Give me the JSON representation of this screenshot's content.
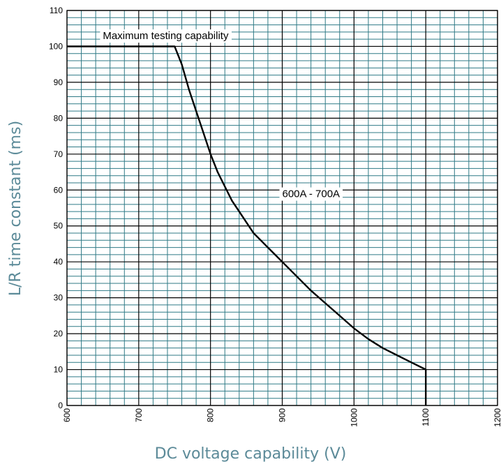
{
  "chart_data": {
    "type": "line",
    "xlabel": "DC voltage capability (V)",
    "ylabel": "L/R time constant (ms)",
    "xlim": [
      600,
      1200
    ],
    "ylim": [
      0,
      110
    ],
    "x_ticks": [
      600,
      700,
      800,
      900,
      1000,
      1100,
      1200
    ],
    "y_ticks": [
      0,
      10,
      20,
      30,
      40,
      50,
      60,
      70,
      80,
      90,
      100,
      110
    ],
    "grid": true,
    "series": [
      {
        "name": "600A - 700A",
        "x": [
          600,
          750,
          760,
          770,
          780,
          790,
          800,
          810,
          820,
          830,
          840,
          850,
          860,
          870,
          880,
          890,
          900,
          920,
          940,
          960,
          980,
          1000,
          1020,
          1040,
          1060,
          1080,
          1100,
          1100
        ],
        "y": [
          100,
          100,
          95,
          88,
          82,
          76,
          70,
          65,
          61,
          57,
          54,
          51,
          48,
          46,
          44,
          42,
          40,
          36,
          32,
          28.5,
          25,
          21.5,
          18.5,
          16,
          14,
          12,
          10,
          0
        ]
      }
    ],
    "annotations": [
      {
        "text": "Maximum testing capability",
        "x": 650,
        "y": 102
      },
      {
        "text": "600A - 700A",
        "x": 900,
        "y": 58
      }
    ],
    "colors": {
      "minor_grid": "#2f7a86",
      "major_grid": "#000000",
      "line": "#000000",
      "axis_title": "#5b8a98"
    }
  }
}
